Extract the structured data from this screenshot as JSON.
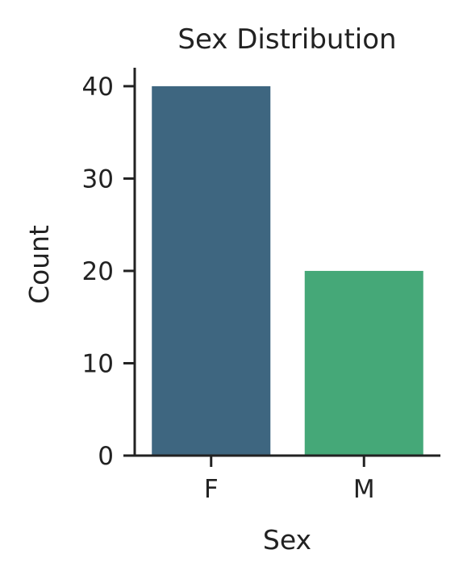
{
  "chart_data": {
    "type": "bar",
    "title": "Sex Distribution",
    "xlabel": "Sex",
    "ylabel": "Count",
    "categories": [
      "F",
      "M"
    ],
    "values": [
      40,
      20
    ],
    "colors": [
      "#3e6680",
      "#45a878"
    ],
    "ylim": [
      0,
      42
    ],
    "yticks": [
      0,
      10,
      20,
      30,
      40
    ],
    "grid": false,
    "legend": "none"
  }
}
